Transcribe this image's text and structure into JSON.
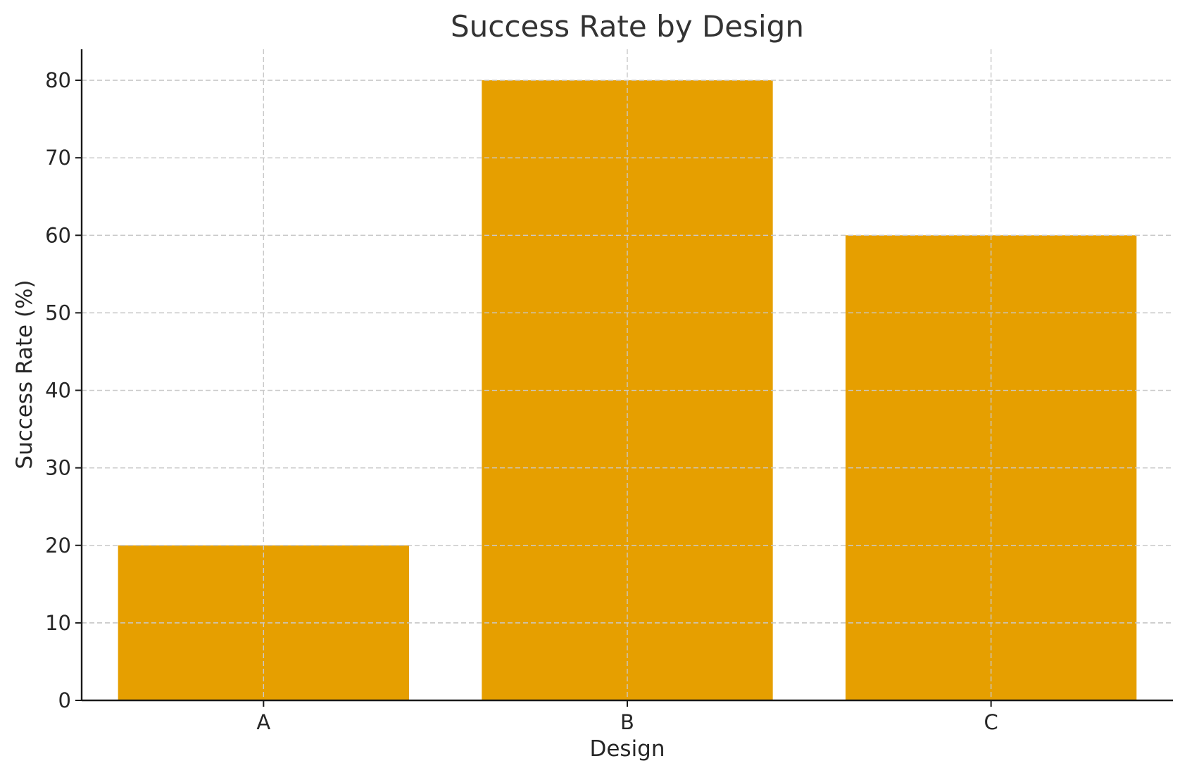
{
  "colors": {
    "bar": "#E69F00",
    "grid": "#c9c9c9",
    "axis": "#1a1a1a",
    "title": "#333333"
  },
  "chart_data": {
    "type": "bar",
    "title": "Success Rate by Design",
    "xlabel": "Design",
    "ylabel": "Success Rate (%)",
    "categories": [
      "A",
      "B",
      "C"
    ],
    "values": [
      20,
      80,
      60
    ],
    "ylim": [
      0,
      84
    ],
    "yticks": [
      0,
      10,
      20,
      30,
      40,
      50,
      60,
      70,
      80
    ],
    "grid": true,
    "legend": false
  }
}
